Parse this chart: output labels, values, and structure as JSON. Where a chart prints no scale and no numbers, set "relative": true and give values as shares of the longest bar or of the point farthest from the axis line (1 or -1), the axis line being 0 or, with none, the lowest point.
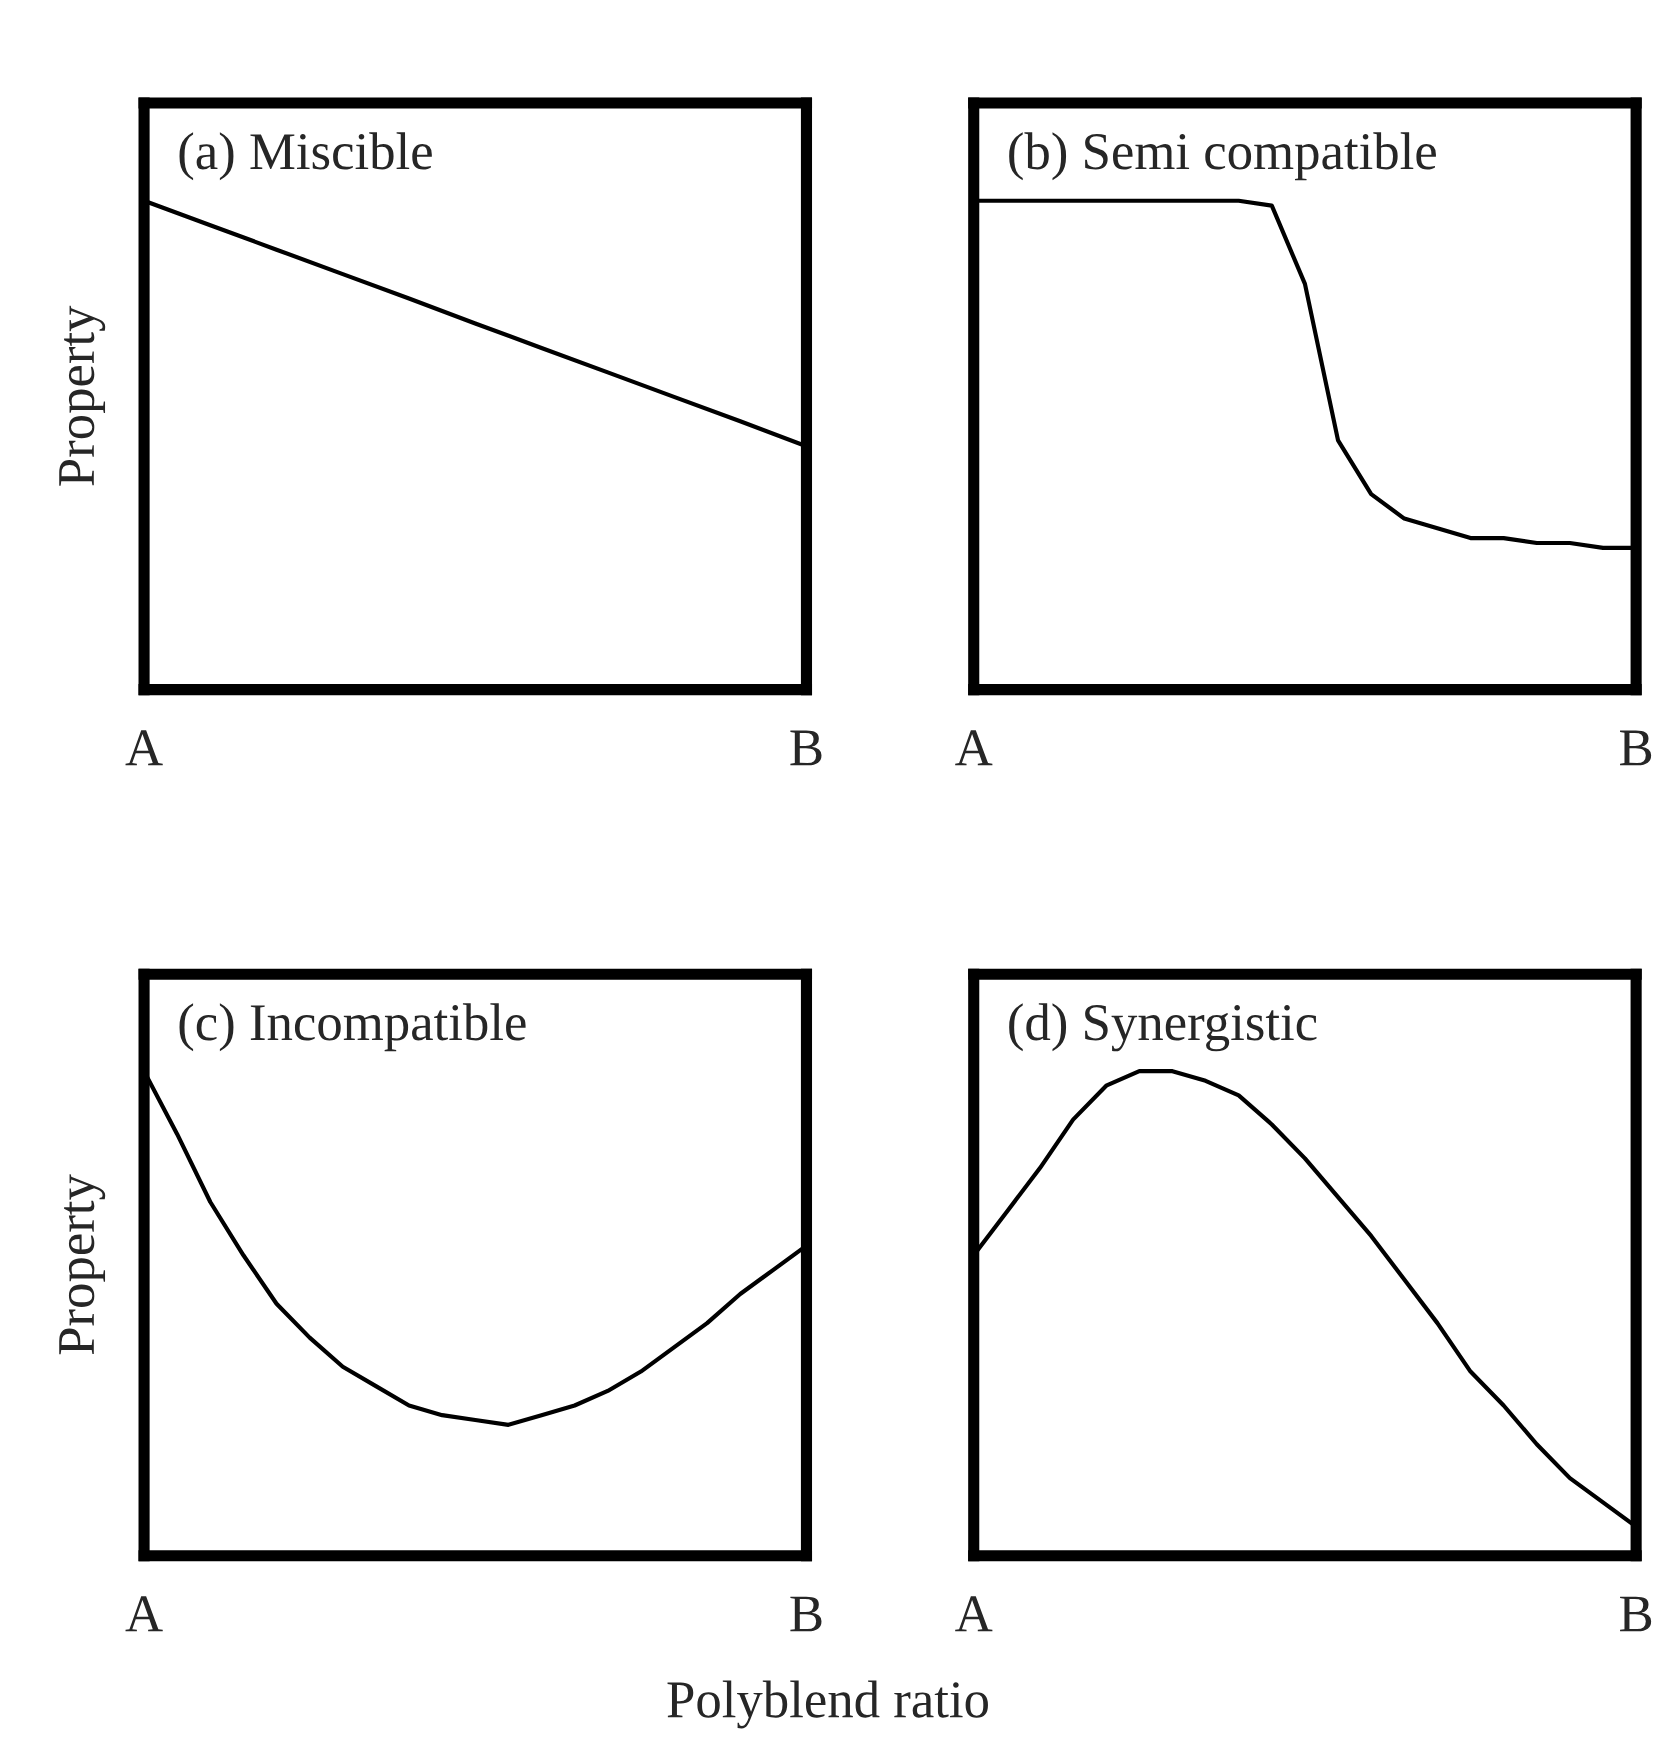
{
  "chart_data": [
    {
      "type": "line",
      "title": "(a) Miscible",
      "ylabel": "Property",
      "relative": true,
      "tick_labels": "x",
      "grid": false,
      "legend": false,
      "marker": "none",
      "line_style": "solid",
      "categories": [
        "A",
        null,
        null,
        null,
        null,
        null,
        null,
        null,
        null,
        null,
        "B"
      ],
      "series": [
        {
          "color": "#000000",
          "values": [
            1,
            0.95,
            0.9,
            0.85,
            0.8,
            0.749,
            0.699,
            0.649,
            0.599,
            0.549,
            0.498
          ]
        }
      ]
    },
    {
      "type": "line",
      "title": "(b) Semi compatible",
      "relative": true,
      "tick_labels": "x",
      "grid": false,
      "legend": false,
      "marker": "none",
      "line_style": "solid",
      "categories": [
        "A",
        null,
        null,
        null,
        null,
        null,
        null,
        null,
        null,
        null,
        null,
        null,
        null,
        null,
        null,
        null,
        null,
        null,
        null,
        null,
        "B"
      ],
      "series": [
        {
          "color": "#000000",
          "values": [
            1,
            1,
            1,
            1,
            1,
            1,
            1,
            1,
            1,
            0.99,
            0.83,
            0.51,
            0.4,
            0.35,
            0.33,
            0.31,
            0.31,
            0.3,
            0.3,
            0.29,
            0.29
          ]
        }
      ]
    },
    {
      "type": "line",
      "title": "(c) Incompatible",
      "ylabel": "Property",
      "relative": true,
      "tick_labels": "x",
      "grid": false,
      "legend": false,
      "marker": "none",
      "line_style": "solid",
      "categories": [
        "A",
        null,
        null,
        null,
        null,
        null,
        null,
        null,
        null,
        null,
        null,
        null,
        null,
        null,
        null,
        null,
        null,
        null,
        null,
        null,
        "B"
      ],
      "series": [
        {
          "color": "#000000",
          "values": [
            1,
            0.87,
            0.73,
            0.62,
            0.52,
            0.45,
            0.39,
            0.35,
            0.31,
            0.29,
            0.28,
            0.27,
            0.29,
            0.31,
            0.34,
            0.38,
            0.43,
            0.48,
            0.54,
            0.59,
            0.64
          ]
        }
      ]
    },
    {
      "type": "line",
      "title": "(d) Synergistic",
      "xlabel": "Polyblend ratio",
      "relative": true,
      "tick_labels": "x",
      "grid": false,
      "legend": false,
      "marker": "none",
      "line_style": "solid",
      "categories": [
        "A",
        null,
        null,
        null,
        null,
        null,
        null,
        null,
        null,
        null,
        null,
        null,
        null,
        null,
        null,
        null,
        null,
        null,
        null,
        null,
        "B"
      ],
      "series": [
        {
          "color": "#000000",
          "values": [
            0.62,
            0.71,
            0.8,
            0.9,
            0.97,
            1,
            1,
            0.98,
            0.95,
            0.89,
            0.82,
            0.74,
            0.66,
            0.57,
            0.48,
            0.38,
            0.31,
            0.23,
            0.16,
            0.11,
            0.06
          ]
        }
      ]
    }
  ]
}
